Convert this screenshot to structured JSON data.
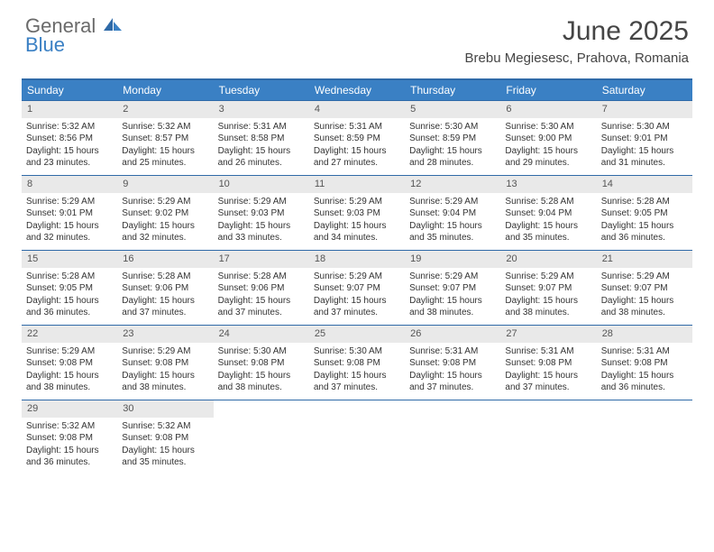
{
  "logo": {
    "word1": "General",
    "word2": "Blue"
  },
  "title": "June 2025",
  "location": "Brebu Megiesesc, Prahova, Romania",
  "colors": {
    "header_bg": "#3a80c4",
    "header_text": "#ffffff",
    "rule": "#2f6aa8",
    "daynum_bg": "#e9e9e9",
    "text": "#333333",
    "logo_gray": "#6a6a6a",
    "logo_blue": "#3a80c4"
  },
  "day_names": [
    "Sunday",
    "Monday",
    "Tuesday",
    "Wednesday",
    "Thursday",
    "Friday",
    "Saturday"
  ],
  "weeks": [
    [
      {
        "n": "1",
        "sunrise": "5:32 AM",
        "sunset": "8:56 PM",
        "dl1": "15 hours",
        "dl2": "23 minutes."
      },
      {
        "n": "2",
        "sunrise": "5:32 AM",
        "sunset": "8:57 PM",
        "dl1": "15 hours",
        "dl2": "25 minutes."
      },
      {
        "n": "3",
        "sunrise": "5:31 AM",
        "sunset": "8:58 PM",
        "dl1": "15 hours",
        "dl2": "26 minutes."
      },
      {
        "n": "4",
        "sunrise": "5:31 AM",
        "sunset": "8:59 PM",
        "dl1": "15 hours",
        "dl2": "27 minutes."
      },
      {
        "n": "5",
        "sunrise": "5:30 AM",
        "sunset": "8:59 PM",
        "dl1": "15 hours",
        "dl2": "28 minutes."
      },
      {
        "n": "6",
        "sunrise": "5:30 AM",
        "sunset": "9:00 PM",
        "dl1": "15 hours",
        "dl2": "29 minutes."
      },
      {
        "n": "7",
        "sunrise": "5:30 AM",
        "sunset": "9:01 PM",
        "dl1": "15 hours",
        "dl2": "31 minutes."
      }
    ],
    [
      {
        "n": "8",
        "sunrise": "5:29 AM",
        "sunset": "9:01 PM",
        "dl1": "15 hours",
        "dl2": "32 minutes."
      },
      {
        "n": "9",
        "sunrise": "5:29 AM",
        "sunset": "9:02 PM",
        "dl1": "15 hours",
        "dl2": "32 minutes."
      },
      {
        "n": "10",
        "sunrise": "5:29 AM",
        "sunset": "9:03 PM",
        "dl1": "15 hours",
        "dl2": "33 minutes."
      },
      {
        "n": "11",
        "sunrise": "5:29 AM",
        "sunset": "9:03 PM",
        "dl1": "15 hours",
        "dl2": "34 minutes."
      },
      {
        "n": "12",
        "sunrise": "5:29 AM",
        "sunset": "9:04 PM",
        "dl1": "15 hours",
        "dl2": "35 minutes."
      },
      {
        "n": "13",
        "sunrise": "5:28 AM",
        "sunset": "9:04 PM",
        "dl1": "15 hours",
        "dl2": "35 minutes."
      },
      {
        "n": "14",
        "sunrise": "5:28 AM",
        "sunset": "9:05 PM",
        "dl1": "15 hours",
        "dl2": "36 minutes."
      }
    ],
    [
      {
        "n": "15",
        "sunrise": "5:28 AM",
        "sunset": "9:05 PM",
        "dl1": "15 hours",
        "dl2": "36 minutes."
      },
      {
        "n": "16",
        "sunrise": "5:28 AM",
        "sunset": "9:06 PM",
        "dl1": "15 hours",
        "dl2": "37 minutes."
      },
      {
        "n": "17",
        "sunrise": "5:28 AM",
        "sunset": "9:06 PM",
        "dl1": "15 hours",
        "dl2": "37 minutes."
      },
      {
        "n": "18",
        "sunrise": "5:29 AM",
        "sunset": "9:07 PM",
        "dl1": "15 hours",
        "dl2": "37 minutes."
      },
      {
        "n": "19",
        "sunrise": "5:29 AM",
        "sunset": "9:07 PM",
        "dl1": "15 hours",
        "dl2": "38 minutes."
      },
      {
        "n": "20",
        "sunrise": "5:29 AM",
        "sunset": "9:07 PM",
        "dl1": "15 hours",
        "dl2": "38 minutes."
      },
      {
        "n": "21",
        "sunrise": "5:29 AM",
        "sunset": "9:07 PM",
        "dl1": "15 hours",
        "dl2": "38 minutes."
      }
    ],
    [
      {
        "n": "22",
        "sunrise": "5:29 AM",
        "sunset": "9:08 PM",
        "dl1": "15 hours",
        "dl2": "38 minutes."
      },
      {
        "n": "23",
        "sunrise": "5:29 AM",
        "sunset": "9:08 PM",
        "dl1": "15 hours",
        "dl2": "38 minutes."
      },
      {
        "n": "24",
        "sunrise": "5:30 AM",
        "sunset": "9:08 PM",
        "dl1": "15 hours",
        "dl2": "38 minutes."
      },
      {
        "n": "25",
        "sunrise": "5:30 AM",
        "sunset": "9:08 PM",
        "dl1": "15 hours",
        "dl2": "37 minutes."
      },
      {
        "n": "26",
        "sunrise": "5:31 AM",
        "sunset": "9:08 PM",
        "dl1": "15 hours",
        "dl2": "37 minutes."
      },
      {
        "n": "27",
        "sunrise": "5:31 AM",
        "sunset": "9:08 PM",
        "dl1": "15 hours",
        "dl2": "37 minutes."
      },
      {
        "n": "28",
        "sunrise": "5:31 AM",
        "sunset": "9:08 PM",
        "dl1": "15 hours",
        "dl2": "36 minutes."
      }
    ],
    [
      {
        "n": "29",
        "sunrise": "5:32 AM",
        "sunset": "9:08 PM",
        "dl1": "15 hours",
        "dl2": "36 minutes."
      },
      {
        "n": "30",
        "sunrise": "5:32 AM",
        "sunset": "9:08 PM",
        "dl1": "15 hours",
        "dl2": "35 minutes."
      },
      {
        "blank": true
      },
      {
        "blank": true
      },
      {
        "blank": true
      },
      {
        "blank": true
      },
      {
        "blank": true
      }
    ]
  ],
  "labels": {
    "sunrise": "Sunrise: ",
    "sunset": "Sunset: ",
    "daylight": "Daylight: ",
    "and": "and "
  }
}
